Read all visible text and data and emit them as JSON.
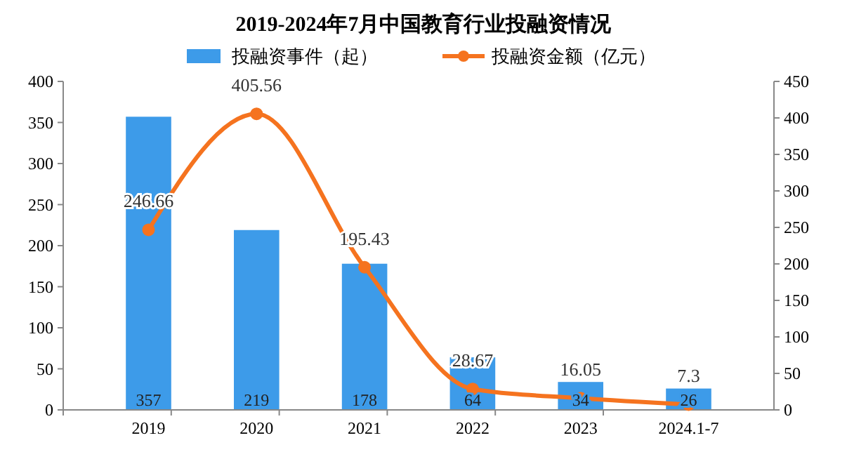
{
  "chart_data": {
    "type": "bar",
    "title": "2019-2024年7月中国教育行业投融资情况",
    "categories": [
      "2019",
      "2020",
      "2021",
      "2022",
      "2023",
      "2024.1-7"
    ],
    "series": [
      {
        "name": "投融资事件（起）",
        "color": "#3d9be9",
        "values": [
          357,
          219,
          178,
          64,
          34,
          26
        ]
      },
      {
        "name": "投融资金额（亿元）",
        "type": "line",
        "axis": "y2",
        "color": "#f5731f",
        "values": [
          246.66,
          405.56,
          195.43,
          28.67,
          16.05,
          7.3
        ]
      }
    ],
    "ylim": [
      0,
      400
    ],
    "yticks": [
      0,
      50,
      100,
      150,
      200,
      250,
      300,
      350,
      400
    ],
    "y2lim": [
      0,
      450
    ],
    "y2ticks": [
      0,
      50,
      100,
      150,
      200,
      250,
      300,
      350,
      400,
      450
    ],
    "data_labels": true,
    "legend": "top",
    "grid": false,
    "marker": "circle",
    "line_style": "solid"
  }
}
